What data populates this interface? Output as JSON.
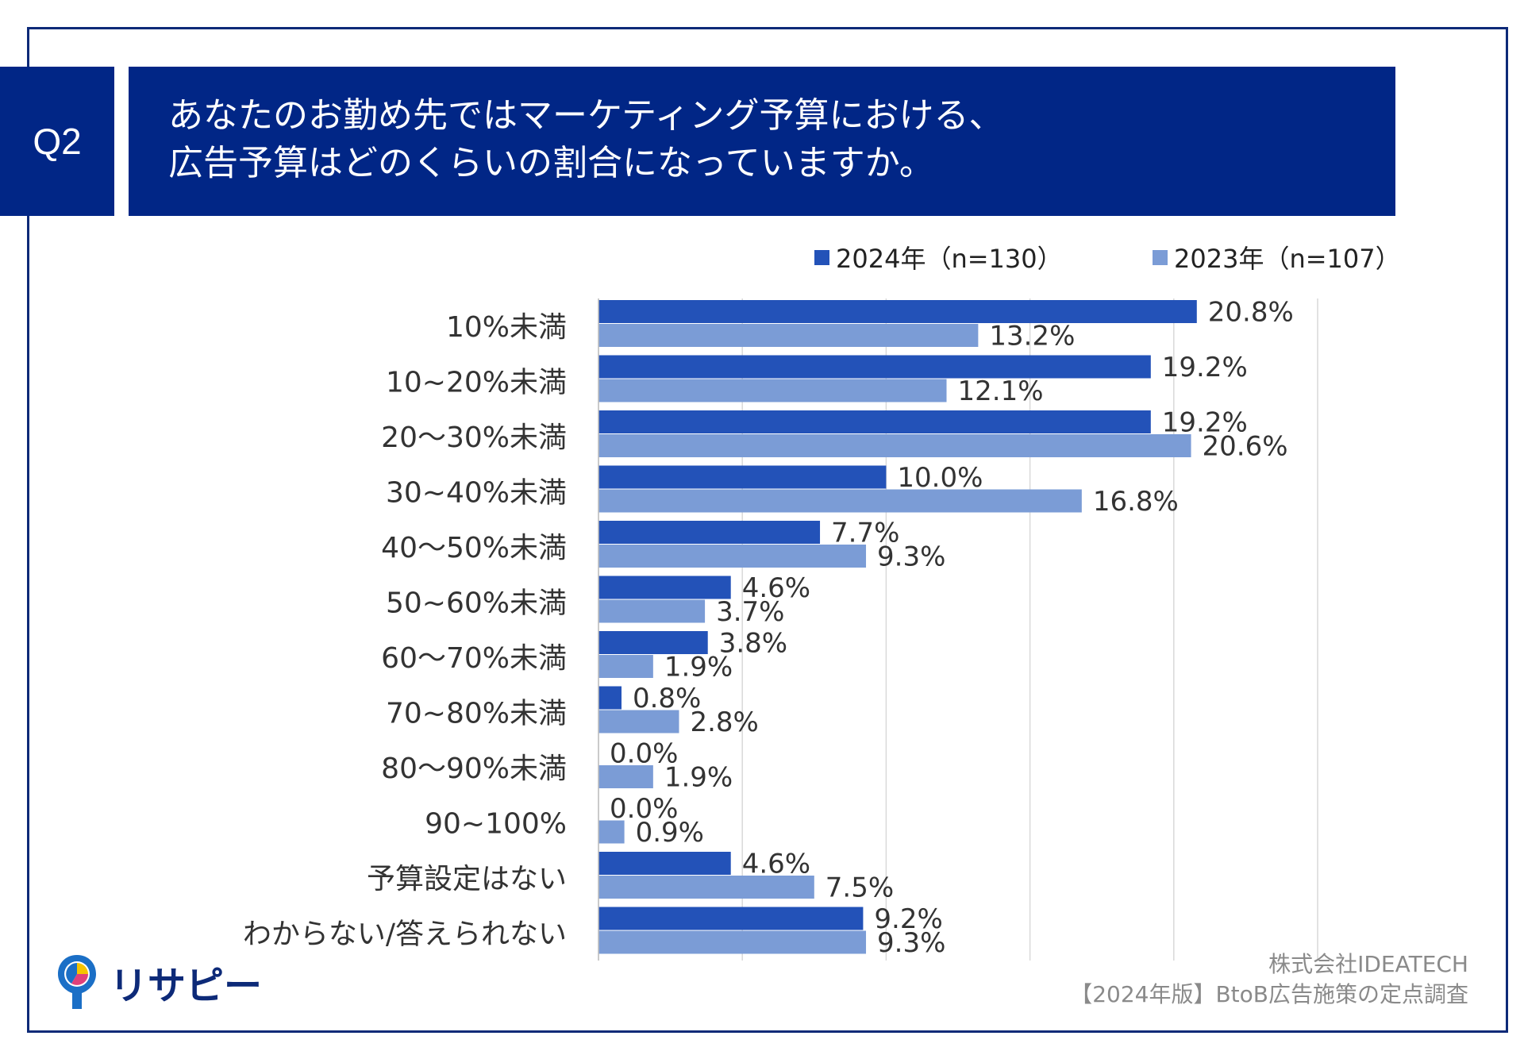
{
  "question": {
    "badge": "Q2",
    "line1": "あなたのお勤め先ではマーケティング予算における、",
    "line2": "広告予算はどのくらいの割合になっていますか。"
  },
  "footer": {
    "logo_text": "リサピー",
    "source_line1": "株式会社IDEATECH",
    "source_line2": "【2024年版】BtoB広告施策の定点調査"
  },
  "colors": {
    "header_bg": "#012686",
    "series_2024": "#2352b8",
    "series_2023": "#7b9cd6",
    "grid": "#d9d9d9"
  },
  "chart_data": {
    "type": "bar",
    "orientation": "horizontal",
    "title": "あなたのお勤め先ではマーケティング予算における、広告予算はどのくらいの割合になっていますか。",
    "legend_position": "top-right",
    "grid": true,
    "xlim": [
      0,
      25
    ],
    "categories": [
      "10%未満",
      "10~20%未満",
      "20〜30%未満",
      "30~40%未満",
      "40〜50%未満",
      "50~60%未満",
      "60〜70%未満",
      "70~80%未満",
      "80〜90%未満",
      "90~100%",
      "予算設定はない",
      "わからない/答えられない"
    ],
    "series": [
      {
        "name": "2024年（n=130）",
        "values": [
          20.8,
          19.2,
          19.2,
          10.0,
          7.7,
          4.6,
          3.8,
          0.8,
          0.0,
          0.0,
          4.6,
          9.2
        ],
        "labels": [
          "20.8%",
          "19.2%",
          "19.2%",
          "10.0%",
          "7.7%",
          "4.6%",
          "3.8%",
          "0.8%",
          "0.0%",
          "0.0%",
          "4.6%",
          "9.2%"
        ]
      },
      {
        "name": "2023年（n=107）",
        "values": [
          13.2,
          12.1,
          20.6,
          16.8,
          9.3,
          3.7,
          1.9,
          2.8,
          1.9,
          0.9,
          7.5,
          9.3
        ],
        "labels": [
          "13.2%",
          "12.1%",
          "20.6%",
          "16.8%",
          "9.3%",
          "3.7%",
          "1.9%",
          "2.8%",
          "1.9%",
          "0.9%",
          "7.5%",
          "9.3%"
        ]
      }
    ]
  }
}
